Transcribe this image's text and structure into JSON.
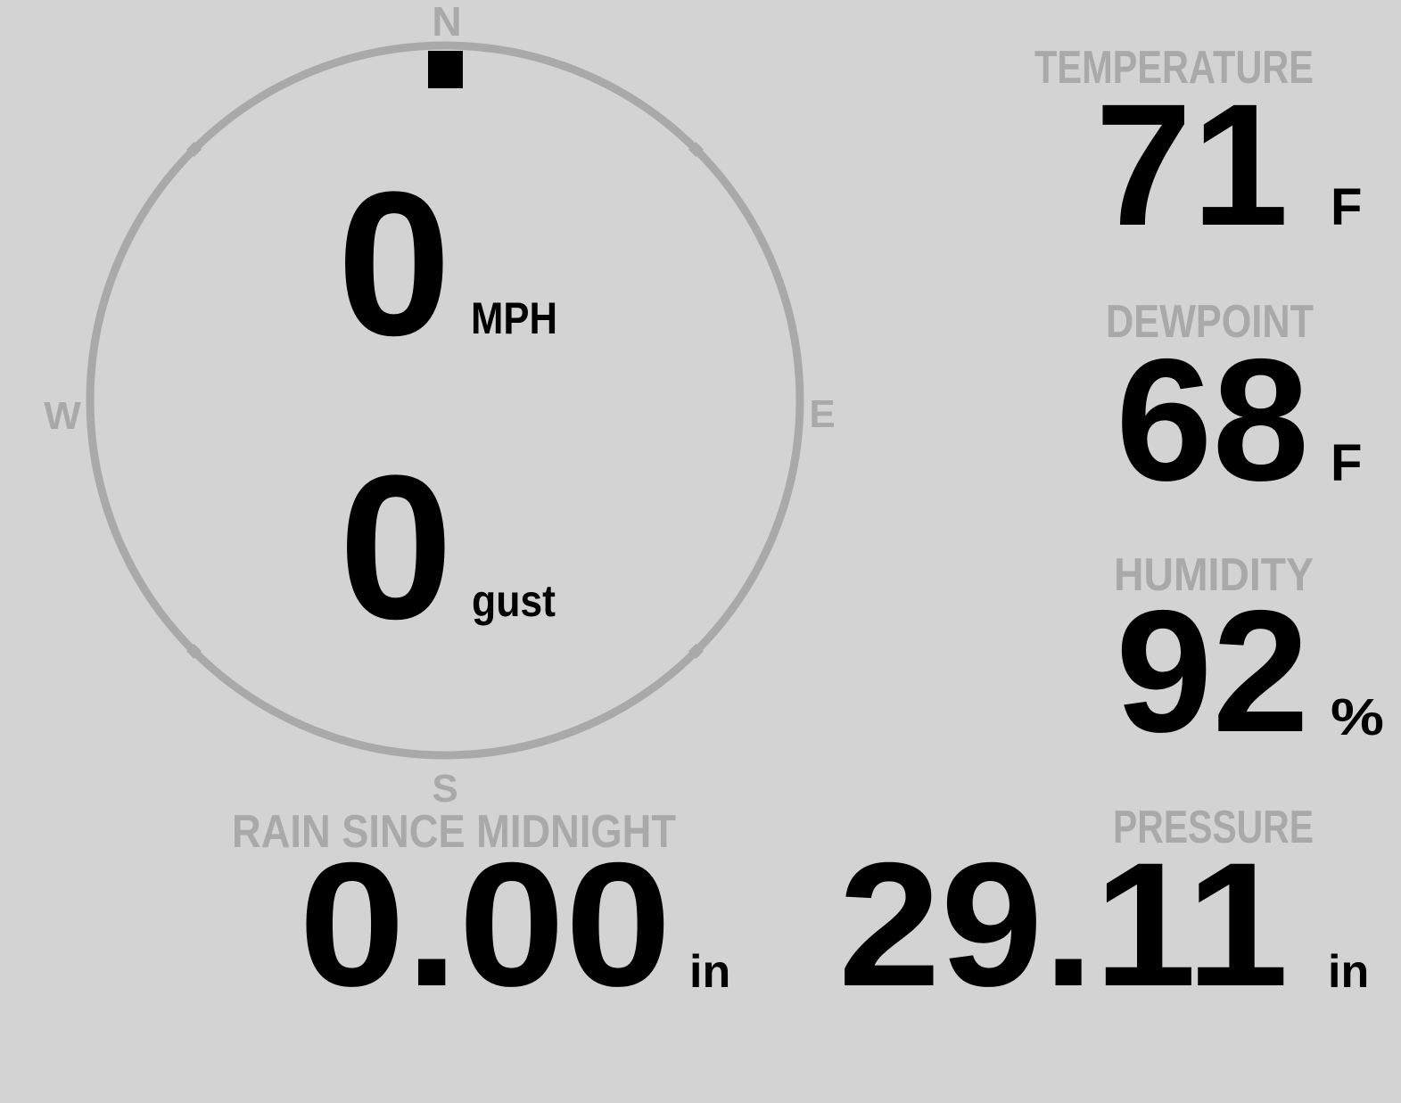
{
  "colors": {
    "background": "#d3d3d3",
    "label": "#a9a9a9",
    "value": "#000000"
  },
  "compass": {
    "north": "N",
    "south": "S",
    "east": "E",
    "west": "W",
    "wind_direction_degrees": 0,
    "wind_speed": "0",
    "wind_speed_unit": "MPH",
    "gust_speed": "0",
    "gust_unit": "gust"
  },
  "temperature": {
    "label": "TEMPERATURE",
    "value": "71",
    "unit": "F"
  },
  "dewpoint": {
    "label": "DEWPOINT",
    "value": "68",
    "unit": "F"
  },
  "humidity": {
    "label": "HUMIDITY",
    "value": "92",
    "unit": "%"
  },
  "pressure": {
    "label": "PRESSURE",
    "value": "29.11",
    "unit": "in"
  },
  "rain": {
    "label": "RAIN SINCE MIDNIGHT",
    "value": "0.00",
    "unit": "in"
  }
}
